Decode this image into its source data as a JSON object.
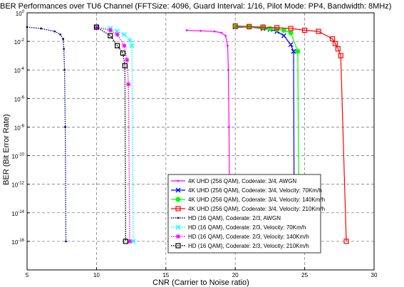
{
  "chart_data": {
    "type": "line",
    "title": "BER Performances over TU6 Channel (FFTSize: 4096, Guard Interval: 1/16, Pilot Mode: PP4, Bandwidth: 8MHz)",
    "xlabel": "CNR (Carrier to Noise ratio)",
    "ylabel": "BER (Bit Error Rate)",
    "xlim": [
      5,
      30
    ],
    "ylim_exp": [
      -18,
      0
    ],
    "y_scale": "log",
    "grid": true,
    "legend_position": "lower-right",
    "x_ticks": [
      {
        "v": 5,
        "label": "5"
      },
      {
        "v": 10,
        "label": "10"
      },
      {
        "v": 15,
        "label": "15"
      },
      {
        "v": 20,
        "label": "20"
      },
      {
        "v": 25,
        "label": "25"
      },
      {
        "v": 30,
        "label": "30"
      }
    ],
    "y_ticks": [
      {
        "exp": 0,
        "base": "10",
        "sup": "0"
      },
      {
        "exp": -2,
        "base": "10",
        "sup": "-2"
      },
      {
        "exp": -4,
        "base": "10",
        "sup": "-4"
      },
      {
        "exp": -6,
        "base": "10",
        "sup": "-6"
      },
      {
        "exp": -8,
        "base": "10",
        "sup": "-8"
      },
      {
        "exp": -10,
        "base": "10",
        "sup": "-10"
      },
      {
        "exp": -12,
        "base": "10",
        "sup": "-12"
      },
      {
        "exp": -14,
        "base": "10",
        "sup": "-14"
      },
      {
        "exp": -16,
        "base": "10",
        "sup": "-16"
      }
    ],
    "series": [
      {
        "name": "4K UHD (256 QAM), Coderate: 3/4, AWGN",
        "color": "#ff00ff",
        "line_style": "solid",
        "marker": "point",
        "points": [
          [
            16.5,
            0.06
          ],
          [
            17.5,
            0.055
          ],
          [
            18.5,
            0.05
          ],
          [
            19,
            0.04
          ],
          [
            19.3,
            0.025
          ],
          [
            19.45,
            0.005
          ],
          [
            19.5,
            0.0001
          ],
          [
            19.55,
            1e-08
          ],
          [
            19.6,
            1e-16
          ]
        ]
      },
      {
        "name": "4K UHD (256 QAM), Coderate: 3/4, Velocity: 70Km/h",
        "color": "#0000ff",
        "line_style": "solid",
        "marker": "x",
        "points": [
          [
            20,
            0.1
          ],
          [
            21,
            0.1
          ],
          [
            22,
            0.08
          ],
          [
            22.5,
            0.07
          ],
          [
            23,
            0.05
          ],
          [
            23.5,
            0.025
          ],
          [
            24,
            0.006
          ],
          [
            24.2,
            0.002
          ],
          [
            24.25,
            1e-16
          ]
        ]
      },
      {
        "name": "4K UHD (256 QAM), Coderate: 3/4, Velocity: 140Km/h",
        "color": "#00ff00",
        "line_style": "solid",
        "marker": "circle",
        "points": [
          [
            20,
            0.11
          ],
          [
            21,
            0.1
          ],
          [
            22,
            0.09
          ],
          [
            22.5,
            0.08
          ],
          [
            23,
            0.07
          ],
          [
            23.5,
            0.06
          ],
          [
            24,
            0.04
          ],
          [
            24.5,
            0.002
          ],
          [
            24.6,
            1e-16
          ]
        ]
      },
      {
        "name": "4K UHD (256 QAM), Coderate: 3/4, Velocity: 210Km/h",
        "color": "#ff0000",
        "line_style": "solid",
        "marker": "square",
        "points": [
          [
            20,
            0.12
          ],
          [
            21,
            0.11
          ],
          [
            22,
            0.1
          ],
          [
            23,
            0.09
          ],
          [
            24,
            0.08
          ],
          [
            25,
            0.06
          ],
          [
            26,
            0.05
          ],
          [
            27,
            0.015
          ],
          [
            27.2,
            0.007
          ],
          [
            27.4,
            0.003
          ],
          [
            27.6,
            0.001
          ],
          [
            28,
            1e-16
          ]
        ]
      },
      {
        "name": "HD (16 QAM), Coderate: 2/3, AWGN",
        "color": "#00008b",
        "line_style": "dotted",
        "marker": "point",
        "points": [
          [
            5,
            0.1
          ],
          [
            6,
            0.08
          ],
          [
            7,
            0.05
          ],
          [
            7.4,
            0.03
          ],
          [
            7.6,
            0.015
          ],
          [
            7.65,
            0.003
          ],
          [
            7.7,
            0.0001
          ],
          [
            7.75,
            1e-08
          ],
          [
            7.8,
            1e-16
          ]
        ]
      },
      {
        "name": "HD (16 QAM),  Coderate: 2/3, Velocity: 70Km/h",
        "color": "#00ffff",
        "line_style": "dotted",
        "marker": "x",
        "points": [
          [
            10,
            0.1
          ],
          [
            11,
            0.08
          ],
          [
            11.5,
            0.05
          ],
          [
            12,
            0.03
          ],
          [
            12.4,
            0.012
          ],
          [
            12.55,
            0.005
          ],
          [
            12.65,
            1e-16
          ]
        ]
      },
      {
        "name": "HD (16 QAM), Coderate: 2/3, Velocity: 140Km/h",
        "color": "#ff00ff",
        "line_style": "dotted",
        "marker": "star",
        "points": [
          [
            10,
            0.09
          ],
          [
            11,
            0.06
          ],
          [
            11.5,
            0.03
          ],
          [
            12,
            0.005
          ],
          [
            12.2,
            0.0005
          ],
          [
            12.3,
            1e-05
          ],
          [
            12.4,
            1e-16
          ]
        ]
      },
      {
        "name": "HD (16 QAM), Coderate: 2/3, Velocity: 210Km/h",
        "color": "#000000",
        "line_style": "dotted",
        "marker": "square",
        "points": [
          [
            10,
            0.1
          ],
          [
            11,
            0.025
          ],
          [
            11.5,
            0.005
          ],
          [
            11.9,
            0.0015
          ],
          [
            12.05,
            0.0002
          ],
          [
            12.1,
            1e-16
          ]
        ]
      }
    ]
  }
}
